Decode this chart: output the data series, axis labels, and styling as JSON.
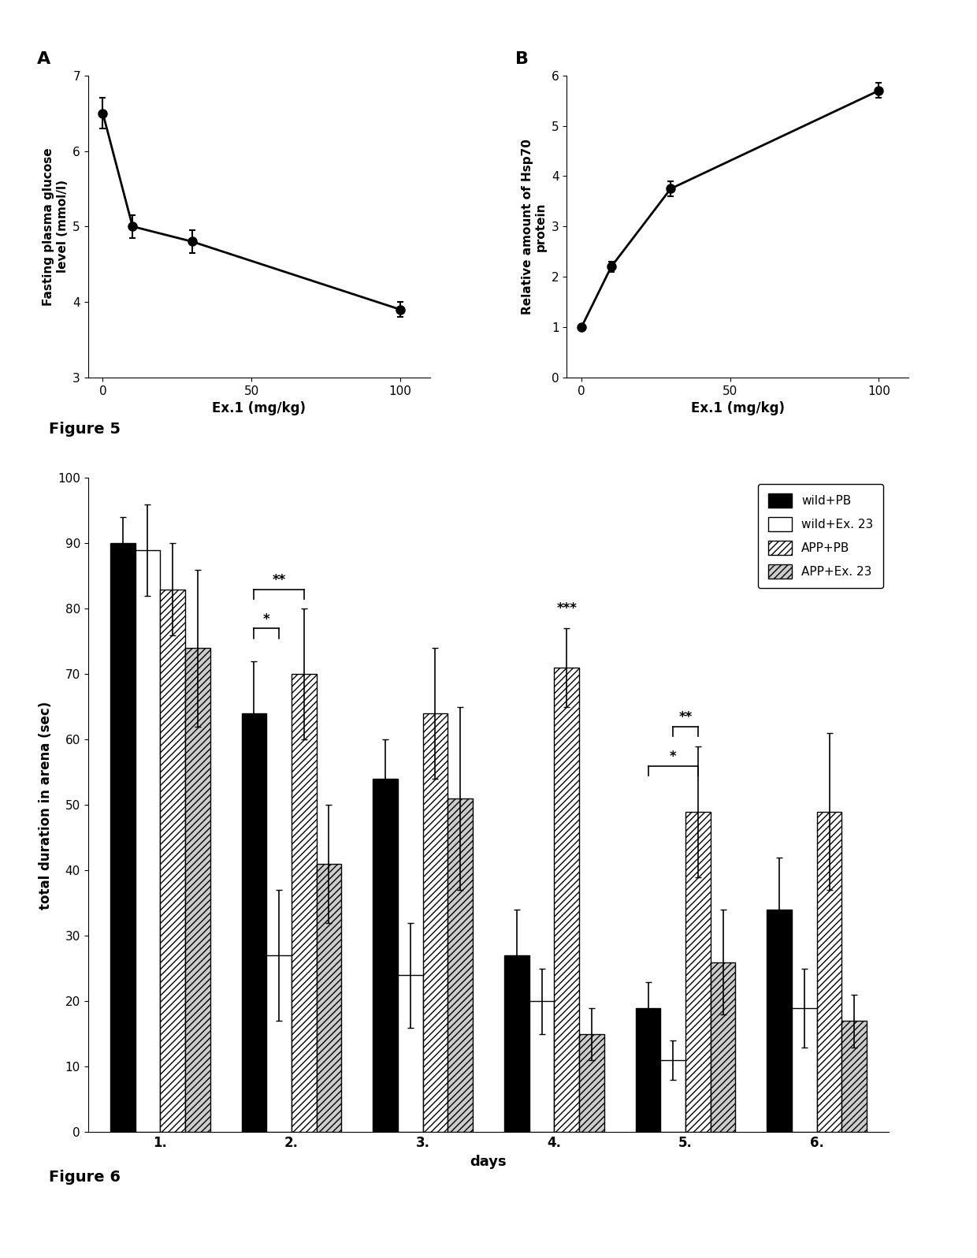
{
  "figA": {
    "x": [
      0,
      10,
      30,
      100
    ],
    "y": [
      6.5,
      5.0,
      4.8,
      3.9
    ],
    "yerr": [
      0.2,
      0.15,
      0.15,
      0.1
    ],
    "xlabel": "Ex.1 (mg/kg)",
    "ylabel": "Fasting plasma glucose\nlevel (mmol/l)",
    "ylim": [
      3,
      7
    ],
    "yticks": [
      3,
      4,
      5,
      6,
      7
    ],
    "xlim": [
      -5,
      110
    ],
    "xticks": [
      0,
      50,
      100
    ],
    "label": "A"
  },
  "figB": {
    "x": [
      0,
      10,
      30,
      100
    ],
    "y": [
      1.0,
      2.2,
      3.75,
      5.7
    ],
    "yerr": [
      0.05,
      0.1,
      0.15,
      0.15
    ],
    "xlabel": "Ex.1 (mg/kg)",
    "ylabel": "Relative amount of Hsp70\nprotein",
    "ylim": [
      0,
      6
    ],
    "yticks": [
      0,
      1,
      2,
      3,
      4,
      5,
      6
    ],
    "xlim": [
      -5,
      110
    ],
    "xticks": [
      0,
      50,
      100
    ],
    "label": "B"
  },
  "fig5_label": "Figure 5",
  "fig6_label": "Figure 6",
  "barChart": {
    "days": [
      "1.",
      "2.",
      "3.",
      "4.",
      "5.",
      "6."
    ],
    "groups": [
      "wild+PB",
      "wild+Ex. 23",
      "APP+PB",
      "APP+Ex. 23"
    ],
    "colors": [
      "#000000",
      "#ffffff",
      "#ffffff",
      "#cccccc"
    ],
    "hatches": [
      "",
      "",
      "////",
      "////"
    ],
    "edgecolors": [
      "#000000",
      "#000000",
      "#000000",
      "#000000"
    ],
    "values": [
      [
        90,
        64,
        54,
        27,
        19,
        34
      ],
      [
        89,
        27,
        24,
        20,
        11,
        19
      ],
      [
        83,
        70,
        64,
        71,
        49,
        49
      ],
      [
        74,
        41,
        51,
        15,
        26,
        17
      ]
    ],
    "errors": [
      [
        4,
        8,
        6,
        7,
        4,
        8
      ],
      [
        7,
        10,
        8,
        5,
        3,
        6
      ],
      [
        7,
        10,
        10,
        6,
        10,
        12
      ],
      [
        12,
        9,
        14,
        4,
        8,
        4
      ]
    ],
    "xlabel": "days",
    "ylabel": "total duration in arena (sec)",
    "ylim": [
      0,
      100
    ],
    "yticks": [
      0,
      10,
      20,
      30,
      40,
      50,
      60,
      70,
      80,
      90,
      100
    ]
  }
}
